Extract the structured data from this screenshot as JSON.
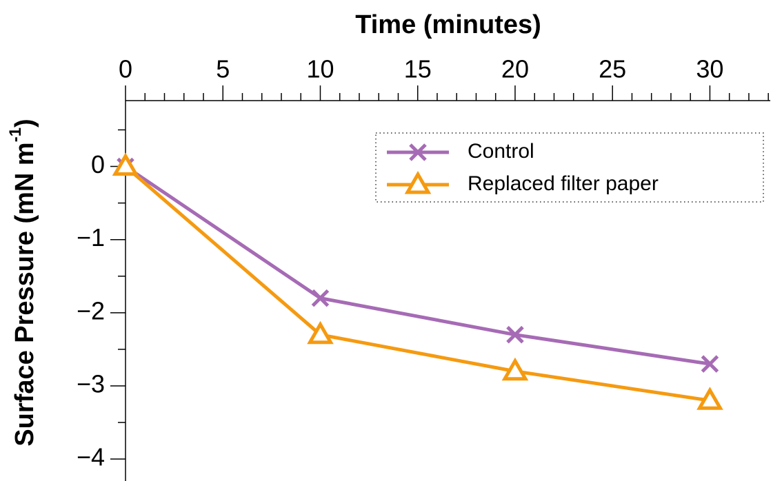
{
  "chart_data": {
    "type": "line",
    "xlabel": "Time (minutes)",
    "ylabel": {
      "text": "Surface Pressure (mN m",
      "sup": "-1",
      "end": ")"
    },
    "x": [
      0,
      10,
      20,
      30
    ],
    "series": [
      {
        "name": "Control",
        "color": "#a66bb5",
        "marker": "x",
        "values": [
          0,
          -1.8,
          -2.3,
          -2.7
        ]
      },
      {
        "name": "Replaced filter paper",
        "color": "#f59a10",
        "marker": "triangle",
        "values": [
          0,
          -2.3,
          -2.8,
          -3.2
        ]
      }
    ],
    "xlim": [
      0,
      33.1
    ],
    "xticks": [
      0,
      5,
      10,
      15,
      20,
      25,
      30
    ],
    "xminorticks": [
      1,
      2,
      3,
      4,
      6,
      7,
      8,
      9,
      11,
      12,
      13,
      14,
      16,
      17,
      18,
      19,
      21,
      22,
      23,
      24,
      26,
      27,
      28,
      29,
      31,
      32,
      33
    ],
    "ylim": [
      -4.3,
      0.9
    ],
    "yticks": [
      {
        "value": -4,
        "label": "−4"
      },
      {
        "value": -3,
        "label": "−3"
      },
      {
        "value": -2,
        "label": "−2"
      },
      {
        "value": -1,
        "label": "−1"
      },
      0
    ],
    "yminorticks": [
      -3.5,
      -2.5,
      -1.5,
      -0.5,
      0.5
    ],
    "xaxis_position": "top",
    "legend": "upper right"
  }
}
